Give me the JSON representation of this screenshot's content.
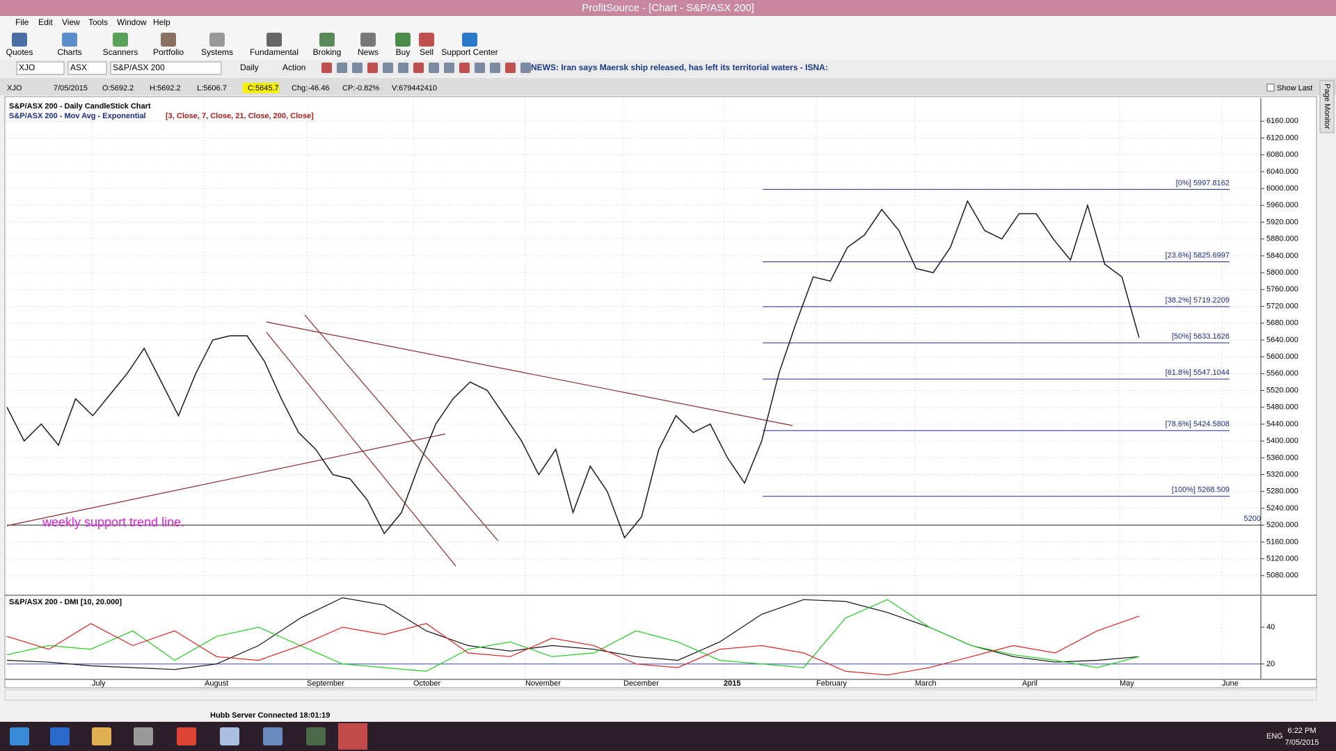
{
  "window": {
    "title": "ProfitSource - [Chart - S&P/ASX 200]"
  },
  "menu": [
    "File",
    "Edit",
    "View",
    "Tools",
    "Window",
    "Help"
  ],
  "toolbar": [
    "Quotes",
    "Charts",
    "Scanners",
    "Portfolio",
    "Systems",
    "Fundamental",
    "Broking",
    "News",
    "Buy",
    "Sell",
    "Support Center"
  ],
  "symbol_bar": {
    "code": "XJO",
    "exchange": "ASX",
    "name": "S&P/ASX 200",
    "period": "Daily",
    "action": "Action",
    "news": "NEWS: Iran says Maersk ship released, has left its territorial waters - ISNA:"
  },
  "info_bar": {
    "code": "XJO",
    "date": "7/05/2015",
    "open": "O:5692.2",
    "high": "H:5692.2",
    "low": "L:5606.7",
    "close": "C:5645.7",
    "change": "Chg:-46.46",
    "change_pct": "CP:-0.82%",
    "volume": "V:679442410",
    "show_last": "Show Last"
  },
  "side_tab": "Page Monitor",
  "chart_data": [
    {
      "type": "line",
      "title": "S&P/ASX 200 - Daily CandleStick Chart",
      "subtitle": "S&P/ASX 200 - Mov Avg - Exponential",
      "subtitle_params": "[3, Close, 7, Close, 21, Close, 200, Close]",
      "months": [
        "July",
        "August",
        "September",
        "October",
        "November",
        "December",
        "2015",
        "February",
        "March",
        "April",
        "May",
        "June"
      ],
      "color": "#1a1a1a",
      "values": [
        5480,
        5400,
        5440,
        5390,
        5500,
        5460,
        5510,
        5560,
        5620,
        5540,
        5460,
        5560,
        5640,
        5650,
        5650,
        5590,
        5500,
        5420,
        5380,
        5320,
        5310,
        5260,
        5180,
        5230,
        5340,
        5440,
        5500,
        5540,
        5520,
        5460,
        5400,
        5320,
        5380,
        5230,
        5340,
        5280,
        5170,
        5220,
        5380,
        5460,
        5420,
        5440,
        5360,
        5300,
        5400,
        5560,
        5680,
        5790,
        5780,
        5860,
        5890,
        5950,
        5900,
        5810,
        5800,
        5860,
        5970,
        5900,
        5880,
        5940,
        5940,
        5880,
        5830,
        5960,
        5820,
        5790,
        5646
      ],
      "ylim": [
        5035,
        6215
      ],
      "yticks": [
        {
          "value": 5080,
          "label": "5080.000"
        },
        {
          "value": 5120,
          "label": "5120.000"
        },
        {
          "value": 5160,
          "label": "5160.000"
        },
        {
          "value": 5200,
          "label": "5200.000"
        },
        {
          "value": 5240,
          "label": "5240.000"
        },
        {
          "value": 5280,
          "label": "5280.000"
        },
        {
          "value": 5320,
          "label": "5320.000"
        },
        {
          "value": 5360,
          "label": "5360.000"
        },
        {
          "value": 5400,
          "label": "5400.000"
        },
        {
          "value": 5440,
          "label": "5440.000"
        },
        {
          "value": 5480,
          "label": "5480.000"
        },
        {
          "value": 5520,
          "label": "5520.000"
        },
        {
          "value": 5560,
          "label": "5560.000"
        },
        {
          "value": 5600,
          "label": "5600.000"
        },
        {
          "value": 5640,
          "label": "5640.000"
        },
        {
          "value": 5680,
          "label": "5680.000"
        },
        {
          "value": 5720,
          "label": "5720.000"
        },
        {
          "value": 5760,
          "label": "5760.000"
        },
        {
          "value": 5800,
          "label": "5800.000"
        },
        {
          "value": 5840,
          "label": "5840.000"
        },
        {
          "value": 5880,
          "label": "5880.000"
        },
        {
          "value": 5920,
          "label": "5920.000"
        },
        {
          "value": 5960,
          "label": "5960.000"
        },
        {
          "value": 6000,
          "label": "6000.000"
        },
        {
          "value": 6040,
          "label": "6040.000"
        },
        {
          "value": 6080,
          "label": "6080.000"
        },
        {
          "value": 6120,
          "label": "6120.000"
        },
        {
          "value": 6160,
          "label": "6160.000"
        }
      ],
      "grid": true,
      "levels": [
        {
          "value": 5997.8162,
          "label": "[0%] 5997.8162"
        },
        {
          "value": 5825.6997,
          "label": "[23.6%] 5825.6997"
        },
        {
          "value": 5719.2209,
          "label": "[38.2%] 5719.2209"
        },
        {
          "value": 5633.1626,
          "label": "[50%] 5633.1626"
        },
        {
          "value": 5547.1044,
          "label": "[61.8%] 5547.1044"
        },
        {
          "value": 5424.5808,
          "label": "[78.6%] 5424.5808"
        },
        {
          "value": 5268.509,
          "label": "[100%] 5268.509"
        }
      ],
      "support_line": 5200,
      "annotation": "weekly support trend line."
    },
    {
      "type": "line",
      "title": "S&P/ASX 200 - DMI [10, 20.000]",
      "ylim": [
        12,
        57
      ],
      "yticks": [
        20,
        40
      ],
      "series": [
        {
          "color": "#111111",
          "values": [
            22,
            21,
            19,
            18,
            17,
            20,
            30,
            45,
            56,
            52,
            38,
            30,
            27,
            30,
            28,
            24,
            22,
            32,
            47,
            55,
            54,
            48,
            40,
            30,
            24,
            21,
            22,
            24
          ]
        },
        {
          "color": "#22cc22",
          "values": [
            25,
            30,
            28,
            38,
            22,
            35,
            40,
            30,
            20,
            18,
            16,
            28,
            32,
            24,
            26,
            38,
            32,
            22,
            20,
            18,
            45,
            55,
            40,
            30,
            25,
            22,
            18,
            24
          ]
        },
        {
          "color": "#dd2222",
          "values": [
            35,
            28,
            42,
            30,
            38,
            24,
            22,
            30,
            40,
            36,
            42,
            26,
            24,
            34,
            30,
            20,
            18,
            28,
            30,
            26,
            16,
            14,
            18,
            24,
            30,
            26,
            38,
            46
          ]
        }
      ]
    }
  ],
  "status": "Hubb Server Connected 18:01:19",
  "taskbar": {
    "language": "ENG",
    "time": "6:22 PM",
    "date": "7/05/2015"
  }
}
